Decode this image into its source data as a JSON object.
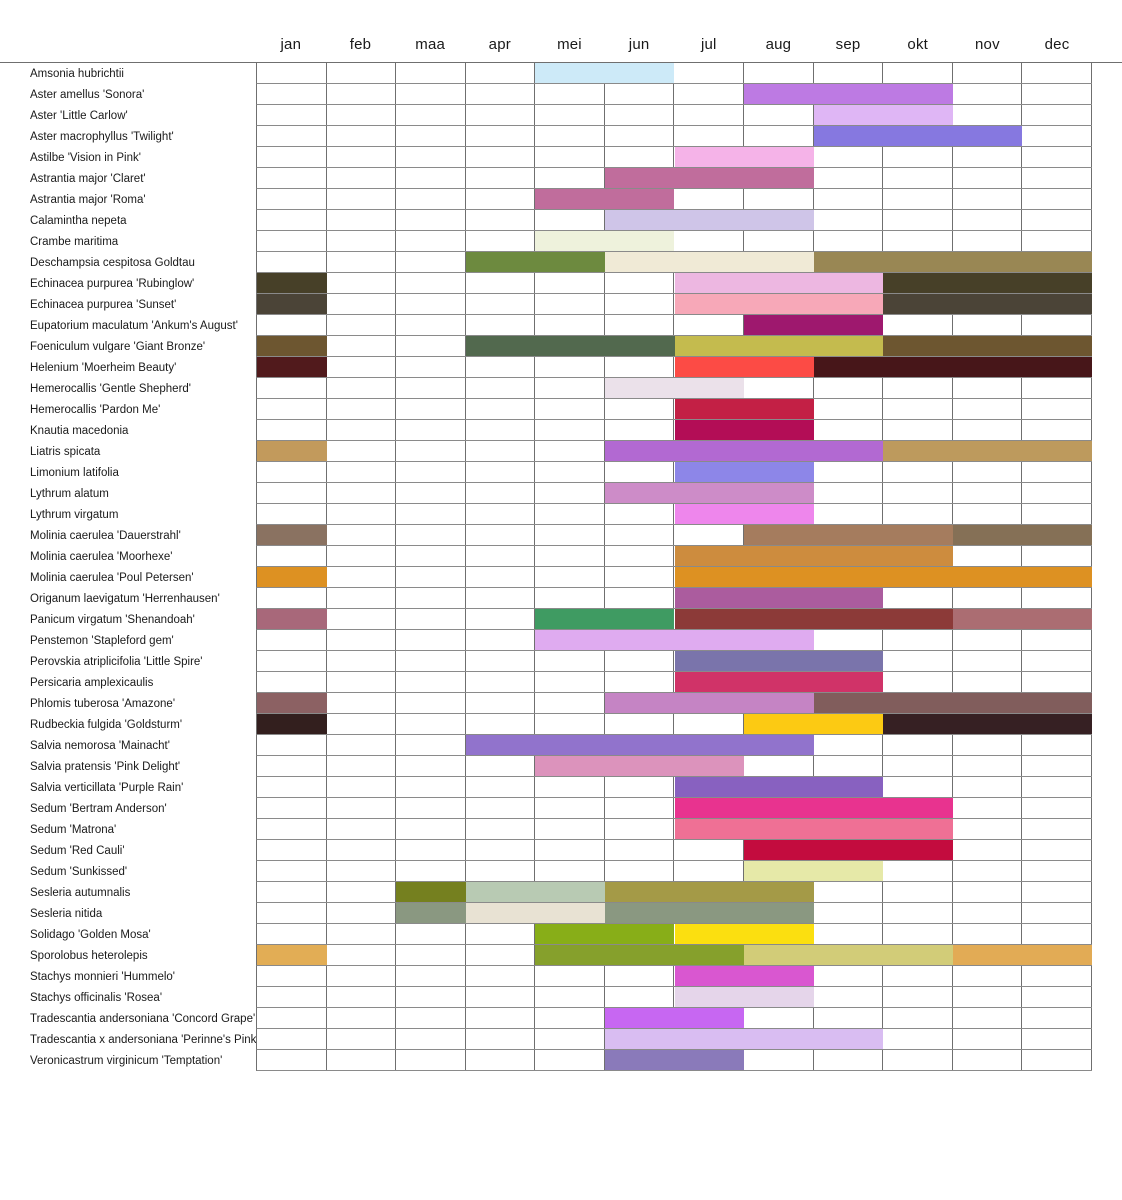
{
  "chart_data": {
    "type": "table",
    "subtype": "bloom-calendar-gantt",
    "title": "",
    "months": [
      "jan",
      "feb",
      "maa",
      "apr",
      "mei",
      "jun",
      "jul",
      "aug",
      "sep",
      "okt",
      "nov",
      "dec"
    ],
    "grid": {
      "line_color_vertical": "#6f6f6f",
      "line_color_horizontal": "#8a8a8a",
      "background": "#ffffff"
    },
    "rows": [
      {
        "plant": "Amsonia hubrichtii",
        "segments": [
          {
            "from": "mei",
            "to": "jun",
            "color": "#cdeaf8"
          }
        ]
      },
      {
        "plant": "Aster amellus 'Sonora'",
        "segments": [
          {
            "from": "aug",
            "to": "okt",
            "color": "#bd7ae3"
          }
        ]
      },
      {
        "plant": "Aster 'Little Carlow'",
        "segments": [
          {
            "from": "sep",
            "to": "okt",
            "color": "#dfb6f5"
          }
        ]
      },
      {
        "plant": "Aster macrophyllus 'Twilight'",
        "segments": [
          {
            "from": "sep",
            "to": "nov",
            "color": "#8678e0"
          }
        ]
      },
      {
        "plant": "Astilbe 'Vision in Pink'",
        "segments": [
          {
            "from": "jul",
            "to": "aug",
            "color": "#f5b3e8"
          }
        ]
      },
      {
        "plant": "Astrantia major 'Claret'",
        "segments": [
          {
            "from": "jun",
            "to": "aug",
            "color": "#c06d9c"
          }
        ]
      },
      {
        "plant": "Astrantia major 'Roma'",
        "segments": [
          {
            "from": "mei",
            "to": "jun",
            "color": "#c06d9c"
          }
        ]
      },
      {
        "plant": "Calamintha nepeta",
        "segments": [
          {
            "from": "jun",
            "to": "aug",
            "color": "#cfc5e8"
          }
        ]
      },
      {
        "plant": "Crambe maritima",
        "segments": [
          {
            "from": "mei",
            "to": "jun",
            "color": "#eef2dc"
          }
        ]
      },
      {
        "plant": "Deschampsia cespitosa Goldtau",
        "segments": [
          {
            "from": "apr",
            "to": "mei",
            "color": "#6d8a3f"
          },
          {
            "from": "jun",
            "to": "aug",
            "color": "#f0ead6"
          },
          {
            "from": "sep",
            "to": "dec",
            "color": "#998754"
          }
        ]
      },
      {
        "plant": "Echinacea purpurea 'Rubinglow'",
        "segments": [
          {
            "from": "jan",
            "to": "jan",
            "color": "#474028"
          },
          {
            "from": "jul",
            "to": "sep",
            "color": "#edb7e1"
          },
          {
            "from": "okt",
            "to": "dec",
            "color": "#474028"
          }
        ]
      },
      {
        "plant": "Echinacea purpurea 'Sunset'",
        "segments": [
          {
            "from": "jan",
            "to": "jan",
            "color": "#4b4437"
          },
          {
            "from": "jul",
            "to": "sep",
            "color": "#f7a8b8"
          },
          {
            "from": "okt",
            "to": "dec",
            "color": "#4b4437"
          }
        ]
      },
      {
        "plant": "Eupatorium maculatum 'Ankum's August'",
        "segments": [
          {
            "from": "aug",
            "to": "sep",
            "color": "#9e186e"
          }
        ]
      },
      {
        "plant": "Foeniculum vulgare 'Giant Bronze'",
        "segments": [
          {
            "from": "jan",
            "to": "jan",
            "color": "#6d5630"
          },
          {
            "from": "apr",
            "to": "jun",
            "color": "#52694e"
          },
          {
            "from": "jul",
            "to": "sep",
            "color": "#c4bb4e"
          },
          {
            "from": "okt",
            "to": "dec",
            "color": "#6d5630"
          }
        ]
      },
      {
        "plant": "Helenium 'Moerheim Beauty'",
        "segments": [
          {
            "from": "jan",
            "to": "jan",
            "color": "#511a1c"
          },
          {
            "from": "jul",
            "to": "aug",
            "color": "#fc4b45"
          },
          {
            "from": "sep",
            "to": "dec",
            "color": "#471619"
          }
        ]
      },
      {
        "plant": "Hemerocallis 'Gentle Shepherd'",
        "segments": [
          {
            "from": "jun",
            "to": "jul",
            "color": "#ebe1ea"
          }
        ]
      },
      {
        "plant": "Hemerocallis 'Pardon Me'",
        "segments": [
          {
            "from": "jul",
            "to": "aug",
            "color": "#c32045"
          }
        ]
      },
      {
        "plant": "Knautia macedonia",
        "segments": [
          {
            "from": "jul",
            "to": "aug",
            "color": "#b30d56"
          }
        ]
      },
      {
        "plant": "Liatris spicata",
        "segments": [
          {
            "from": "jan",
            "to": "jan",
            "color": "#c29a5c"
          },
          {
            "from": "jun",
            "to": "sep",
            "color": "#b269d2"
          },
          {
            "from": "okt",
            "to": "dec",
            "color": "#bd9a5d"
          }
        ]
      },
      {
        "plant": "Limonium latifolia",
        "segments": [
          {
            "from": "jul",
            "to": "aug",
            "color": "#8d86e8"
          }
        ]
      },
      {
        "plant": "Lythrum alatum",
        "segments": [
          {
            "from": "jun",
            "to": "aug",
            "color": "#cd8cc8"
          }
        ]
      },
      {
        "plant": "Lythrum virgatum",
        "segments": [
          {
            "from": "jul",
            "to": "aug",
            "color": "#ee86ec"
          }
        ]
      },
      {
        "plant": "Molinia caerulea 'Dauerstrahl'",
        "segments": [
          {
            "from": "jan",
            "to": "jan",
            "color": "#8a7261"
          },
          {
            "from": "aug",
            "to": "okt",
            "color": "#a57c5e"
          },
          {
            "from": "nov",
            "to": "dec",
            "color": "#857056"
          }
        ]
      },
      {
        "plant": "Molinia caerulea 'Moorhexe'",
        "segments": [
          {
            "from": "jul",
            "to": "okt",
            "color": "#cd8c3e"
          }
        ]
      },
      {
        "plant": "Molinia caerulea 'Poul Petersen'",
        "segments": [
          {
            "from": "jan",
            "to": "jan",
            "color": "#dd9122"
          },
          {
            "from": "jul",
            "to": "dec",
            "color": "#dd9122"
          }
        ]
      },
      {
        "plant": "Origanum laevigatum 'Herrenhausen'",
        "segments": [
          {
            "from": "jul",
            "to": "sep",
            "color": "#ab5c9e"
          }
        ]
      },
      {
        "plant": "Panicum virgatum 'Shenandoah'",
        "segments": [
          {
            "from": "jan",
            "to": "jan",
            "color": "#a8687a"
          },
          {
            "from": "mei",
            "to": "jun",
            "color": "#3f9b62"
          },
          {
            "from": "jul",
            "to": "okt",
            "color": "#8c3a38"
          },
          {
            "from": "nov",
            "to": "dec",
            "color": "#ab6d72"
          }
        ]
      },
      {
        "plant": "Penstemon 'Stapleford gem'",
        "segments": [
          {
            "from": "mei",
            "to": "aug",
            "color": "#dfabf0"
          }
        ]
      },
      {
        "plant": "Perovskia atriplicifolia 'Little Spire'",
        "segments": [
          {
            "from": "jul",
            "to": "sep",
            "color": "#7a74ab"
          }
        ]
      },
      {
        "plant": "Persicaria amplexicaulis",
        "segments": [
          {
            "from": "jul",
            "to": "sep",
            "color": "#d03368"
          }
        ]
      },
      {
        "plant": "Phlomis tuberosa 'Amazone'",
        "segments": [
          {
            "from": "jan",
            "to": "jan",
            "color": "#8c6163"
          },
          {
            "from": "jun",
            "to": "aug",
            "color": "#c584c4"
          },
          {
            "from": "sep",
            "to": "dec",
            "color": "#815d5c"
          }
        ]
      },
      {
        "plant": "Rudbeckia fulgida 'Goldsturm'",
        "segments": [
          {
            "from": "jan",
            "to": "jan",
            "color": "#331f1e"
          },
          {
            "from": "aug",
            "to": "sep",
            "color": "#fcca13"
          },
          {
            "from": "okt",
            "to": "dec",
            "color": "#362023"
          }
        ]
      },
      {
        "plant": "Salvia nemorosa 'Mainacht'",
        "segments": [
          {
            "from": "apr",
            "to": "aug",
            "color": "#9173cc"
          }
        ]
      },
      {
        "plant": "Salvia pratensis 'Pink Delight'",
        "segments": [
          {
            "from": "mei",
            "to": "jul",
            "color": "#dc93bc"
          }
        ]
      },
      {
        "plant": "Salvia verticillata 'Purple Rain'",
        "segments": [
          {
            "from": "jul",
            "to": "sep",
            "color": "#8861c0"
          }
        ]
      },
      {
        "plant": "Sedum 'Bertram Anderson'",
        "segments": [
          {
            "from": "jul",
            "to": "okt",
            "color": "#e8338f"
          }
        ]
      },
      {
        "plant": "Sedum 'Matrona'",
        "segments": [
          {
            "from": "jul",
            "to": "okt",
            "color": "#ef7095"
          }
        ]
      },
      {
        "plant": "Sedum 'Red Cauli'",
        "segments": [
          {
            "from": "aug",
            "to": "okt",
            "color": "#c30c3e"
          }
        ]
      },
      {
        "plant": "Sedum 'Sunkissed'",
        "segments": [
          {
            "from": "aug",
            "to": "sep",
            "color": "#e6e9a8"
          }
        ]
      },
      {
        "plant": "Sesleria autumnalis",
        "segments": [
          {
            "from": "maa",
            "to": "maa",
            "color": "#75801f"
          },
          {
            "from": "apr",
            "to": "mei",
            "color": "#b8cab3"
          },
          {
            "from": "jun",
            "to": "aug",
            "color": "#a49a47"
          }
        ]
      },
      {
        "plant": "Sesleria nitida",
        "segments": [
          {
            "from": "maa",
            "to": "maa",
            "color": "#8a9881"
          },
          {
            "from": "apr",
            "to": "mei",
            "color": "#e8e2d3"
          },
          {
            "from": "jun",
            "to": "aug",
            "color": "#8a9881"
          }
        ]
      },
      {
        "plant": "Solidago 'Golden Mosa'",
        "segments": [
          {
            "from": "mei",
            "to": "jun",
            "color": "#88ae18"
          },
          {
            "from": "jul",
            "to": "aug",
            "color": "#fbdf10"
          }
        ]
      },
      {
        "plant": "Sporolobus heterolepis",
        "segments": [
          {
            "from": "jan",
            "to": "jan",
            "color": "#e2ad55"
          },
          {
            "from": "mei",
            "to": "jul",
            "color": "#86a02c"
          },
          {
            "from": "aug",
            "to": "okt",
            "color": "#d2cc78"
          },
          {
            "from": "nov",
            "to": "dec",
            "color": "#e2ab55"
          }
        ]
      },
      {
        "plant": "Stachys monnieri 'Hummelo'",
        "segments": [
          {
            "from": "jul",
            "to": "aug",
            "color": "#d957d0"
          }
        ]
      },
      {
        "plant": "Stachys officinalis 'Rosea'",
        "segments": [
          {
            "from": "jul",
            "to": "aug",
            "color": "#e5d5ea"
          }
        ]
      },
      {
        "plant": "Tradescantia andersoniana 'Concord Grape'",
        "segments": [
          {
            "from": "jun",
            "to": "jul",
            "color": "#c767f2"
          }
        ]
      },
      {
        "plant": "Tradescantia x andersoniana 'Perinne's Pink'",
        "segments": [
          {
            "from": "jun",
            "to": "sep",
            "color": "#d9bdf2"
          }
        ]
      },
      {
        "plant": "Veronicastrum virginicum 'Temptation'",
        "segments": [
          {
            "from": "jun",
            "to": "jul",
            "color": "#8a7aba"
          }
        ]
      }
    ]
  }
}
